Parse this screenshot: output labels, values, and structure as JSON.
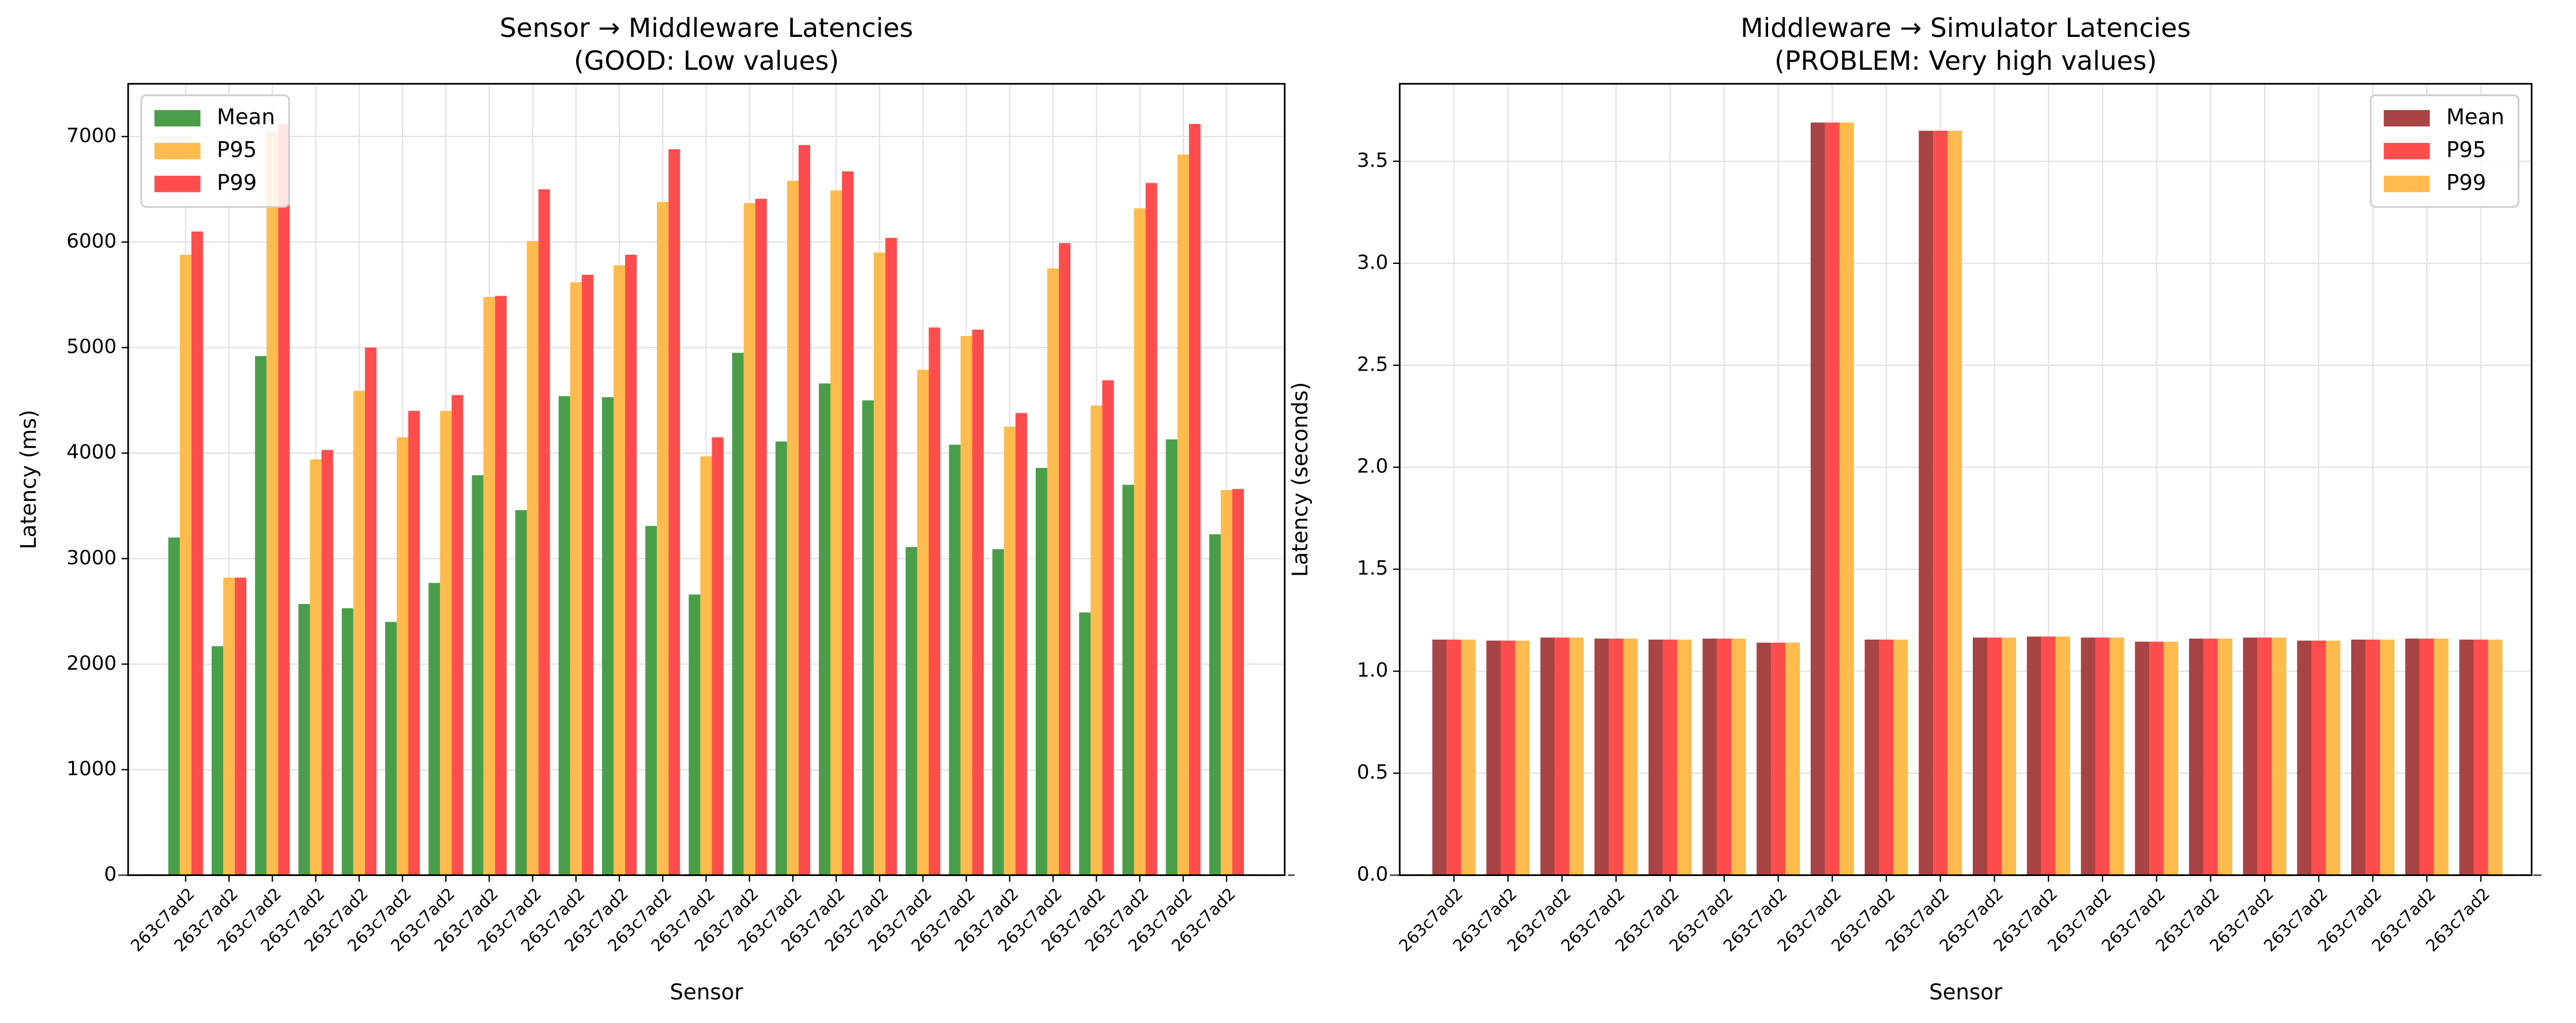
{
  "chart_data": [
    {
      "type": "bar",
      "title": "Sensor → Middleware Latencies",
      "subtitle": "(GOOD: Low values)",
      "x_label": "Sensor",
      "y_label": "Latency (ms)",
      "categories": [
        "263c7ad2",
        "263c7ad2",
        "263c7ad2",
        "263c7ad2",
        "263c7ad2",
        "263c7ad2",
        "263c7ad2",
        "263c7ad2",
        "263c7ad2",
        "263c7ad2",
        "263c7ad2",
        "263c7ad2",
        "263c7ad2",
        "263c7ad2",
        "263c7ad2",
        "263c7ad2",
        "263c7ad2",
        "263c7ad2",
        "263c7ad2",
        "263c7ad2",
        "263c7ad2",
        "263c7ad2",
        "263c7ad2",
        "263c7ad2",
        "263c7ad2"
      ],
      "series": [
        {
          "name": "Mean",
          "color": "#4a9e4a",
          "values": [
            3200,
            2170,
            4920,
            2570,
            2530,
            2400,
            2770,
            3790,
            3460,
            4540,
            4530,
            3310,
            2660,
            4950,
            4110,
            4660,
            4500,
            3110,
            4080,
            3090,
            3860,
            2490,
            3700,
            4130,
            3230
          ]
        },
        {
          "name": "P95",
          "color": "#ffbb4d",
          "values": [
            5880,
            2820,
            7050,
            3940,
            4590,
            4150,
            4400,
            5480,
            6010,
            5620,
            5780,
            6380,
            3970,
            6370,
            6580,
            6490,
            5900,
            4790,
            5110,
            4250,
            5750,
            4450,
            6320,
            6830,
            3650
          ]
        },
        {
          "name": "P99",
          "color": "#ff4d4d",
          "values": [
            6100,
            2820,
            7120,
            4030,
            5000,
            4400,
            4550,
            5490,
            6500,
            5690,
            5880,
            6880,
            4150,
            6410,
            6920,
            6670,
            6040,
            5190,
            5170,
            4380,
            5990,
            4690,
            6560,
            7120,
            3660
          ]
        }
      ],
      "ylim": [
        0,
        7500
      ],
      "yticks": [
        0,
        1000,
        2000,
        3000,
        4000,
        5000,
        6000,
        7000
      ],
      "grid": true,
      "legend": "upper left"
    },
    {
      "type": "bar",
      "title": "Middleware → Simulator Latencies",
      "subtitle": "(PROBLEM: Very high values)",
      "x_label": "Sensor",
      "y_label": "Latency (seconds)",
      "categories": [
        "263c7ad2",
        "263c7ad2",
        "263c7ad2",
        "263c7ad2",
        "263c7ad2",
        "263c7ad2",
        "263c7ad2",
        "263c7ad2",
        "263c7ad2",
        "263c7ad2",
        "263c7ad2",
        "263c7ad2",
        "263c7ad2",
        "263c7ad2",
        "263c7ad2",
        "263c7ad2",
        "263c7ad2",
        "263c7ad2",
        "263c7ad2",
        "263c7ad2"
      ],
      "series": [
        {
          "name": "Mean",
          "color": "#a84444",
          "values": [
            1.155,
            1.15,
            1.165,
            1.16,
            1.155,
            1.16,
            1.14,
            3.69,
            1.155,
            3.65,
            1.165,
            1.17,
            1.165,
            1.145,
            1.16,
            1.165,
            1.15,
            1.155,
            1.16,
            1.155
          ]
        },
        {
          "name": "P95",
          "color": "#ff4d4d",
          "values": [
            1.155,
            1.15,
            1.165,
            1.16,
            1.155,
            1.16,
            1.14,
            3.69,
            1.155,
            3.65,
            1.165,
            1.17,
            1.165,
            1.145,
            1.16,
            1.165,
            1.15,
            1.155,
            1.16,
            1.155
          ]
        },
        {
          "name": "P99",
          "color": "#ffbb4d",
          "values": [
            1.155,
            1.15,
            1.165,
            1.16,
            1.155,
            1.16,
            1.14,
            3.69,
            1.155,
            3.65,
            1.165,
            1.17,
            1.165,
            1.145,
            1.16,
            1.165,
            1.15,
            1.155,
            1.16,
            1.155
          ]
        }
      ],
      "ylim": [
        0,
        3.88
      ],
      "yticks": [
        {
          "value": 0,
          "label": "0.0"
        },
        0.5,
        {
          "value": 1,
          "label": "1.0"
        },
        1.5,
        {
          "value": 2,
          "label": "2.0"
        },
        2.5,
        {
          "value": 3,
          "label": "3.0"
        },
        3.5
      ],
      "grid": true,
      "legend": "upper right"
    }
  ]
}
